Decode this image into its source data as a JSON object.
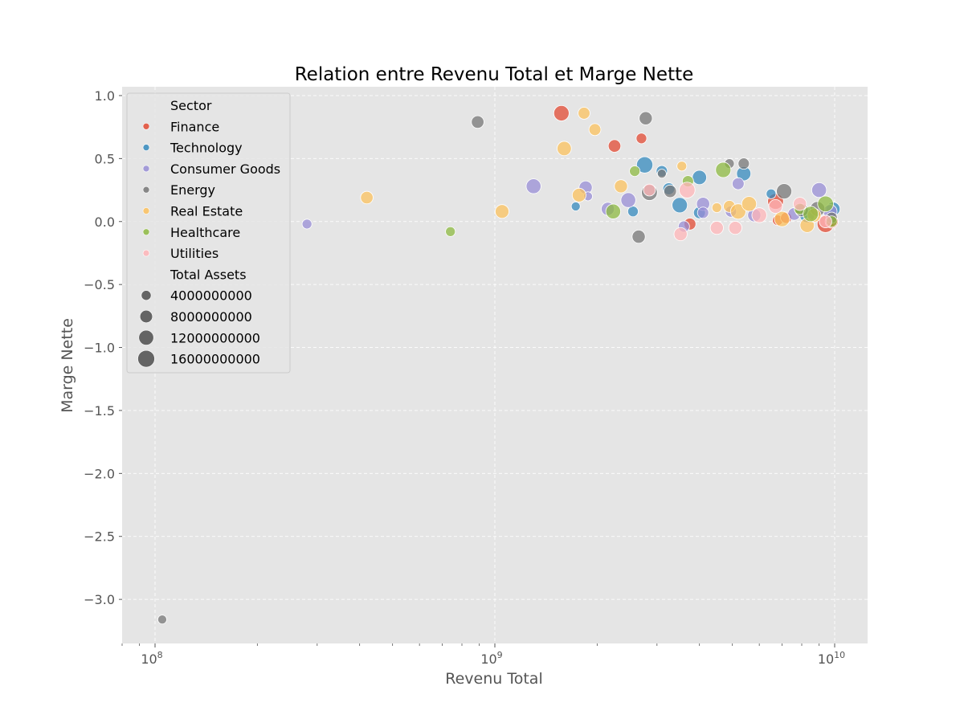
{
  "chart_data": {
    "type": "scatter",
    "title": "Relation entre Revenu Total et Marge Nette",
    "xlabel": "Revenu Total",
    "ylabel": "Marge Nette",
    "xscale": "log",
    "xlim": [
      80000000,
      12500000000
    ],
    "ylim": [
      -3.35,
      1.07
    ],
    "x_ticks": [
      {
        "value": 100000000,
        "base": "10",
        "exp": "8"
      },
      {
        "value": 1000000000,
        "base": "10",
        "exp": "9"
      },
      {
        "value": 10000000000,
        "base": "10",
        "exp": "10"
      }
    ],
    "y_ticks": [
      {
        "value": 1.0,
        "label": "1.0"
      },
      {
        "value": 0.5,
        "label": "0.5"
      },
      {
        "value": 0.0,
        "label": "0.0"
      },
      {
        "value": -0.5,
        "label": "−0.5"
      },
      {
        "value": -1.0,
        "label": "−1.0"
      },
      {
        "value": -1.5,
        "label": "−1.5"
      },
      {
        "value": -2.0,
        "label": "−2.0"
      },
      {
        "value": -2.5,
        "label": "−2.5"
      },
      {
        "value": -3.0,
        "label": "−3.0"
      }
    ],
    "grid": true,
    "legend": {
      "placement": "top-left",
      "hue_title": "Sector",
      "size_title": "Total Assets",
      "size_entries": [
        4000000000,
        8000000000,
        12000000000,
        16000000000
      ],
      "size_labels": [
        "4000000000",
        "8000000000",
        "12000000000",
        "16000000000"
      ]
    },
    "size_range_assets": [
      500000000,
      18000000000
    ],
    "series": [
      {
        "name": "Finance",
        "color": "#E24A33",
        "points": [
          [
            1570000000,
            0.86,
            13000000000
          ],
          [
            2700000000,
            0.66,
            5000000000
          ],
          [
            2250000000,
            0.6,
            8000000000
          ],
          [
            3750000000,
            -0.02,
            7000000000
          ],
          [
            6700000000,
            0.16,
            14000000000
          ],
          [
            6800000000,
            0.01,
            5000000000
          ],
          [
            7200000000,
            0.03,
            6000000000
          ],
          [
            9400000000,
            -0.02,
            16000000000
          ],
          [
            9800000000,
            0.0,
            9000000000
          ]
        ]
      },
      {
        "name": "Technology",
        "color": "#348ABD",
        "points": [
          [
            2760000000,
            0.45,
            15000000000
          ],
          [
            3100000000,
            0.4,
            6000000000
          ],
          [
            4000000000,
            0.35,
            11000000000
          ],
          [
            5400000000,
            0.38,
            11000000000
          ],
          [
            1730000000,
            0.12,
            3000000000
          ],
          [
            2550000000,
            0.08,
            5000000000
          ],
          [
            3250000000,
            0.26,
            7000000000
          ],
          [
            3500000000,
            0.13,
            13000000000
          ],
          [
            4000000000,
            0.07,
            7000000000
          ],
          [
            6500000000,
            0.22,
            4000000000
          ],
          [
            8300000000,
            0.05,
            12000000000
          ],
          [
            9900000000,
            0.1,
            10000000000
          ]
        ]
      },
      {
        "name": "Consumer Goods",
        "color": "#988ED5",
        "points": [
          [
            280000000,
            -0.02,
            4000000000
          ],
          [
            1300000000,
            0.28,
            12000000000
          ],
          [
            1850000000,
            0.27,
            9000000000
          ],
          [
            1880000000,
            0.2,
            3000000000
          ],
          [
            2150000000,
            0.1,
            9000000000
          ],
          [
            2470000000,
            0.17,
            12000000000
          ],
          [
            3600000000,
            -0.04,
            6000000000
          ],
          [
            4100000000,
            0.14,
            9000000000
          ],
          [
            4100000000,
            0.07,
            6000000000
          ],
          [
            4950000000,
            0.08,
            6000000000
          ],
          [
            5200000000,
            0.3,
            7000000000
          ],
          [
            5800000000,
            0.05,
            9000000000
          ],
          [
            9000000000,
            0.25,
            12000000000
          ],
          [
            7600000000,
            0.06,
            8000000000
          ],
          [
            9700000000,
            0.08,
            10000000000
          ]
        ]
      },
      {
        "name": "Energy",
        "color": "#777777",
        "points": [
          [
            105000000,
            -3.16,
            3000000000
          ],
          [
            890000000,
            0.79,
            8000000000
          ],
          [
            2780000000,
            0.82,
            9000000000
          ],
          [
            2850000000,
            0.23,
            14000000000
          ],
          [
            2650000000,
            -0.12,
            9000000000
          ],
          [
            3100000000,
            0.38,
            3000000000
          ],
          [
            3280000000,
            0.24,
            8000000000
          ],
          [
            4900000000,
            0.46,
            4000000000
          ],
          [
            5400000000,
            0.46,
            6000000000
          ],
          [
            7100000000,
            0.24,
            13000000000
          ],
          [
            8000000000,
            0.09,
            9000000000
          ],
          [
            8900000000,
            0.1,
            12000000000
          ],
          [
            9800000000,
            0.03,
            6000000000
          ]
        ]
      },
      {
        "name": "Real Estate",
        "color": "#FBC15E",
        "points": [
          [
            420000000,
            0.19,
            8000000000
          ],
          [
            1050000000,
            0.08,
            10000000000
          ],
          [
            1600000000,
            0.58,
            11000000000
          ],
          [
            1830000000,
            0.86,
            7000000000
          ],
          [
            1970000000,
            0.73,
            7000000000
          ],
          [
            1770000000,
            0.21,
            10000000000
          ],
          [
            2350000000,
            0.28,
            9000000000
          ],
          [
            3550000000,
            0.44,
            4000000000
          ],
          [
            4500000000,
            0.11,
            4000000000
          ],
          [
            4900000000,
            0.12,
            7000000000
          ],
          [
            5200000000,
            0.08,
            13000000000
          ],
          [
            5600000000,
            0.14,
            12000000000
          ],
          [
            7000000000,
            0.02,
            13000000000
          ],
          [
            8300000000,
            -0.03,
            11000000000
          ],
          [
            8700000000,
            0.05,
            10000000000
          ]
        ]
      },
      {
        "name": "Healthcare",
        "color": "#8EBA42",
        "points": [
          [
            740000000,
            -0.08,
            4000000000
          ],
          [
            2230000000,
            0.08,
            12000000000
          ],
          [
            2580000000,
            0.4,
            5000000000
          ],
          [
            3700000000,
            0.32,
            6000000000
          ],
          [
            4700000000,
            0.41,
            13000000000
          ],
          [
            7900000000,
            0.1,
            6000000000
          ],
          [
            8500000000,
            0.06,
            13000000000
          ],
          [
            9400000000,
            0.14,
            14000000000
          ],
          [
            9800000000,
            0.0,
            6000000000
          ]
        ]
      },
      {
        "name": "Utilities",
        "color": "#FFB5B8",
        "points": [
          [
            2850000000,
            0.25,
            7000000000
          ],
          [
            3520000000,
            -0.1,
            9000000000
          ],
          [
            3680000000,
            0.25,
            14000000000
          ],
          [
            4500000000,
            -0.05,
            9000000000
          ],
          [
            5100000000,
            -0.05,
            9000000000
          ],
          [
            6000000000,
            0.05,
            12000000000
          ],
          [
            6700000000,
            0.12,
            10000000000
          ],
          [
            7900000000,
            0.14,
            9000000000
          ],
          [
            9400000000,
            0.0,
            8000000000
          ]
        ]
      }
    ]
  }
}
